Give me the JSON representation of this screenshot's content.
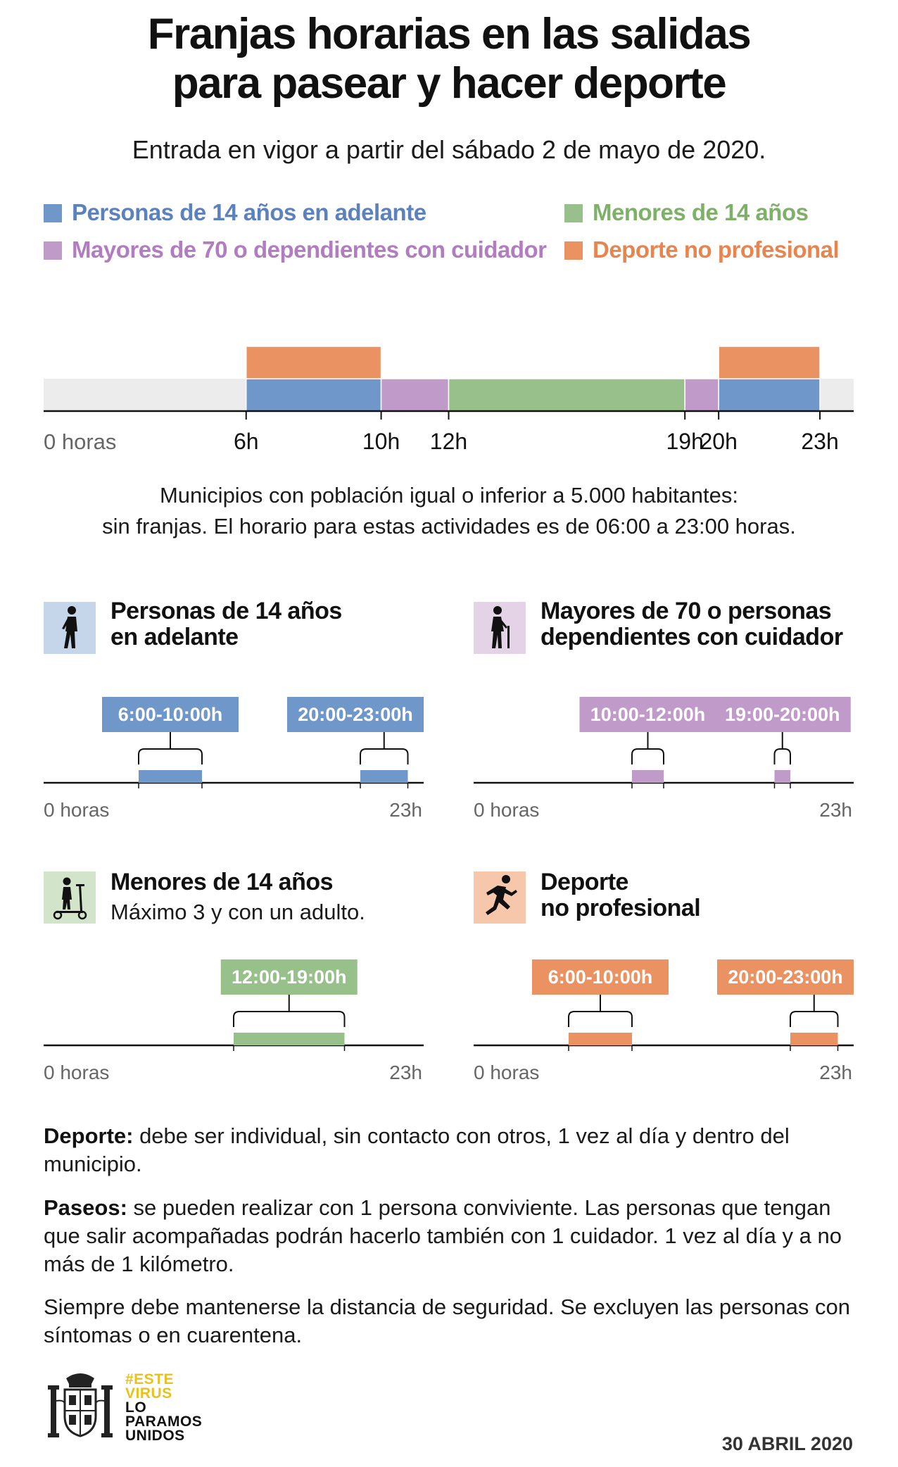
{
  "title_line1": "Franjas horarias en las salidas",
  "title_line2": "para pasear y hacer deporte",
  "subtitle": "Entrada en vigor a partir del sábado 2 de mayo de 2020.",
  "colors": {
    "adultos": "#6f97c9",
    "mayores": "#c09ac8",
    "menores": "#98c08a",
    "deporte": "#eb9262",
    "adultos_text": "#5b82be",
    "mayores_text": "#b17dc0",
    "menores_text": "#7fb06a",
    "deporte_text": "#e8844e",
    "track": "#ececec"
  },
  "legend": {
    "adultos": "Personas de 14 años en adelante",
    "menores": "Menores de 14 años",
    "mayores": "Mayores de 70 o dependientes con cuidador",
    "deporte": "Deporte no profesional"
  },
  "note_line1": "Municipios con población igual o inferior a 5.000 habitantes:",
  "note_line2": "sin franjas. El horario para estas actividades es de 06:00 a 23:00 horas.",
  "panels": {
    "adultos": {
      "title_line1": "Personas de 14 años",
      "title_line2": "en adelante",
      "icon": "walking-person-icon"
    },
    "mayores": {
      "title_line1": "Mayores de 70 o personas",
      "title_line2": "dependientes con cuidador",
      "icon": "elderly-with-cane-icon"
    },
    "menores": {
      "title_line1": "Menores de 14 años",
      "subtitle": "Máximo 3 y con un adulto.",
      "icon": "child-on-scooter-icon"
    },
    "deporte": {
      "title_line1": "Deporte",
      "title_line2": "no profesional",
      "icon": "runner-icon"
    }
  },
  "axis_start_label": "0 horas",
  "axis_end_label": "23h",
  "chart_data": [
    {
      "type": "bar",
      "orientation": "horizontal-timeline",
      "x_unit": "hours",
      "xlim": [
        0,
        24
      ],
      "tick_labels": [
        {
          "hour": 0,
          "label": "0 horas"
        },
        {
          "hour": 6,
          "label": "6h"
        },
        {
          "hour": 10,
          "label": "10h"
        },
        {
          "hour": 12,
          "label": "12h"
        },
        {
          "hour": 19,
          "label": "19h"
        },
        {
          "hour": 20,
          "label": "20h"
        },
        {
          "hour": 23,
          "label": "23h"
        }
      ],
      "rows": [
        {
          "name": "main",
          "segments": [
            {
              "group": "adultos",
              "start": 6,
              "end": 10
            },
            {
              "group": "mayores",
              "start": 10,
              "end": 12
            },
            {
              "group": "menores",
              "start": 12,
              "end": 19
            },
            {
              "group": "mayores",
              "start": 19,
              "end": 20
            },
            {
              "group": "adultos",
              "start": 20,
              "end": 23
            }
          ]
        },
        {
          "name": "top",
          "segments": [
            {
              "group": "deporte",
              "start": 6,
              "end": 10
            },
            {
              "group": "deporte",
              "start": 20,
              "end": 23
            }
          ]
        }
      ]
    },
    {
      "type": "bar",
      "group": "adultos",
      "xlim": [
        0,
        24
      ],
      "segments": [
        {
          "start": 6,
          "end": 10,
          "label": "6:00-10:00h"
        },
        {
          "start": 20,
          "end": 23,
          "label": "20:00-23:00h"
        }
      ]
    },
    {
      "type": "bar",
      "group": "mayores",
      "xlim": [
        0,
        24
      ],
      "segments": [
        {
          "start": 10,
          "end": 12,
          "label": "10:00-12:00h"
        },
        {
          "start": 19,
          "end": 20,
          "label": "19:00-20:00h"
        }
      ]
    },
    {
      "type": "bar",
      "group": "menores",
      "xlim": [
        0,
        24
      ],
      "segments": [
        {
          "start": 12,
          "end": 19,
          "label": "12:00-19:00h"
        }
      ]
    },
    {
      "type": "bar",
      "group": "deporte",
      "xlim": [
        0,
        24
      ],
      "segments": [
        {
          "start": 6,
          "end": 10,
          "label": "6:00-10:00h"
        },
        {
          "start": 20,
          "end": 23,
          "label": "20:00-23:00h"
        }
      ]
    }
  ],
  "paragraphs": {
    "p1_bold": "Deporte:",
    "p1_text": " debe ser individual, sin contacto con otros, 1 vez al día y dentro del municipio.",
    "p2_bold": "Paseos:",
    "p2_text": " se pueden realizar con 1 persona conviviente. Las personas que tengan que salir acompañadas podrán hacerlo también con 1 cuidador. 1 vez al día y a no más de 1 kilómetro.",
    "p3_text": "Siempre debe mantenerse la distancia de seguridad. Se excluyen las personas con síntomas o en cuarentena."
  },
  "slogan": {
    "line1": "#ESTE",
    "line2": "VIRUS",
    "line3": "LO",
    "line4": "PARAMOS",
    "line5": "UNIDOS"
  },
  "date": "30 ABRIL 2020"
}
